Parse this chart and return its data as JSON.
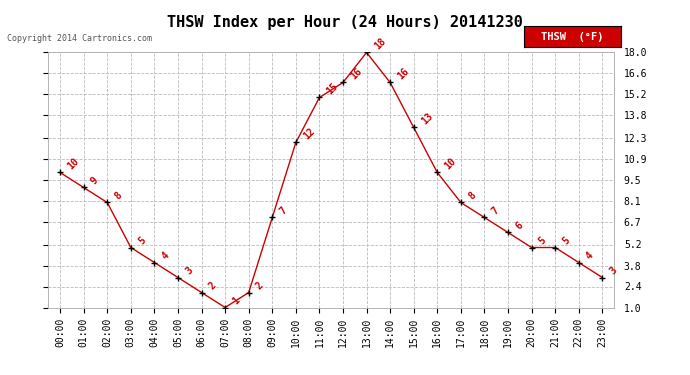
{
  "title": "THSW Index per Hour (24 Hours) 20141230",
  "copyright": "Copyright 2014 Cartronics.com",
  "hours": [
    "00:00",
    "01:00",
    "02:00",
    "03:00",
    "04:00",
    "05:00",
    "06:00",
    "07:00",
    "08:00",
    "09:00",
    "10:00",
    "11:00",
    "12:00",
    "13:00",
    "14:00",
    "15:00",
    "16:00",
    "17:00",
    "18:00",
    "19:00",
    "20:00",
    "21:00",
    "22:00",
    "23:00"
  ],
  "values": [
    10,
    9,
    8,
    5,
    4,
    3,
    2,
    1,
    2,
    7,
    12,
    15,
    16,
    18,
    16,
    13,
    10,
    8,
    7,
    6,
    5,
    5,
    4,
    3
  ],
  "line_color": "#cc0000",
  "marker_color": "#000000",
  "grid_color": "#bbbbbb",
  "background_color": "#ffffff",
  "title_fontsize": 11,
  "tick_fontsize": 7,
  "ylim": [
    1.0,
    18.0
  ],
  "yticks": [
    1.0,
    2.4,
    3.8,
    5.2,
    6.7,
    8.1,
    9.5,
    10.9,
    12.3,
    13.8,
    15.2,
    16.6,
    18.0
  ],
  "legend_label": "THSW  (°F)",
  "legend_bg": "#cc0000",
  "legend_text_color": "#ffffff"
}
